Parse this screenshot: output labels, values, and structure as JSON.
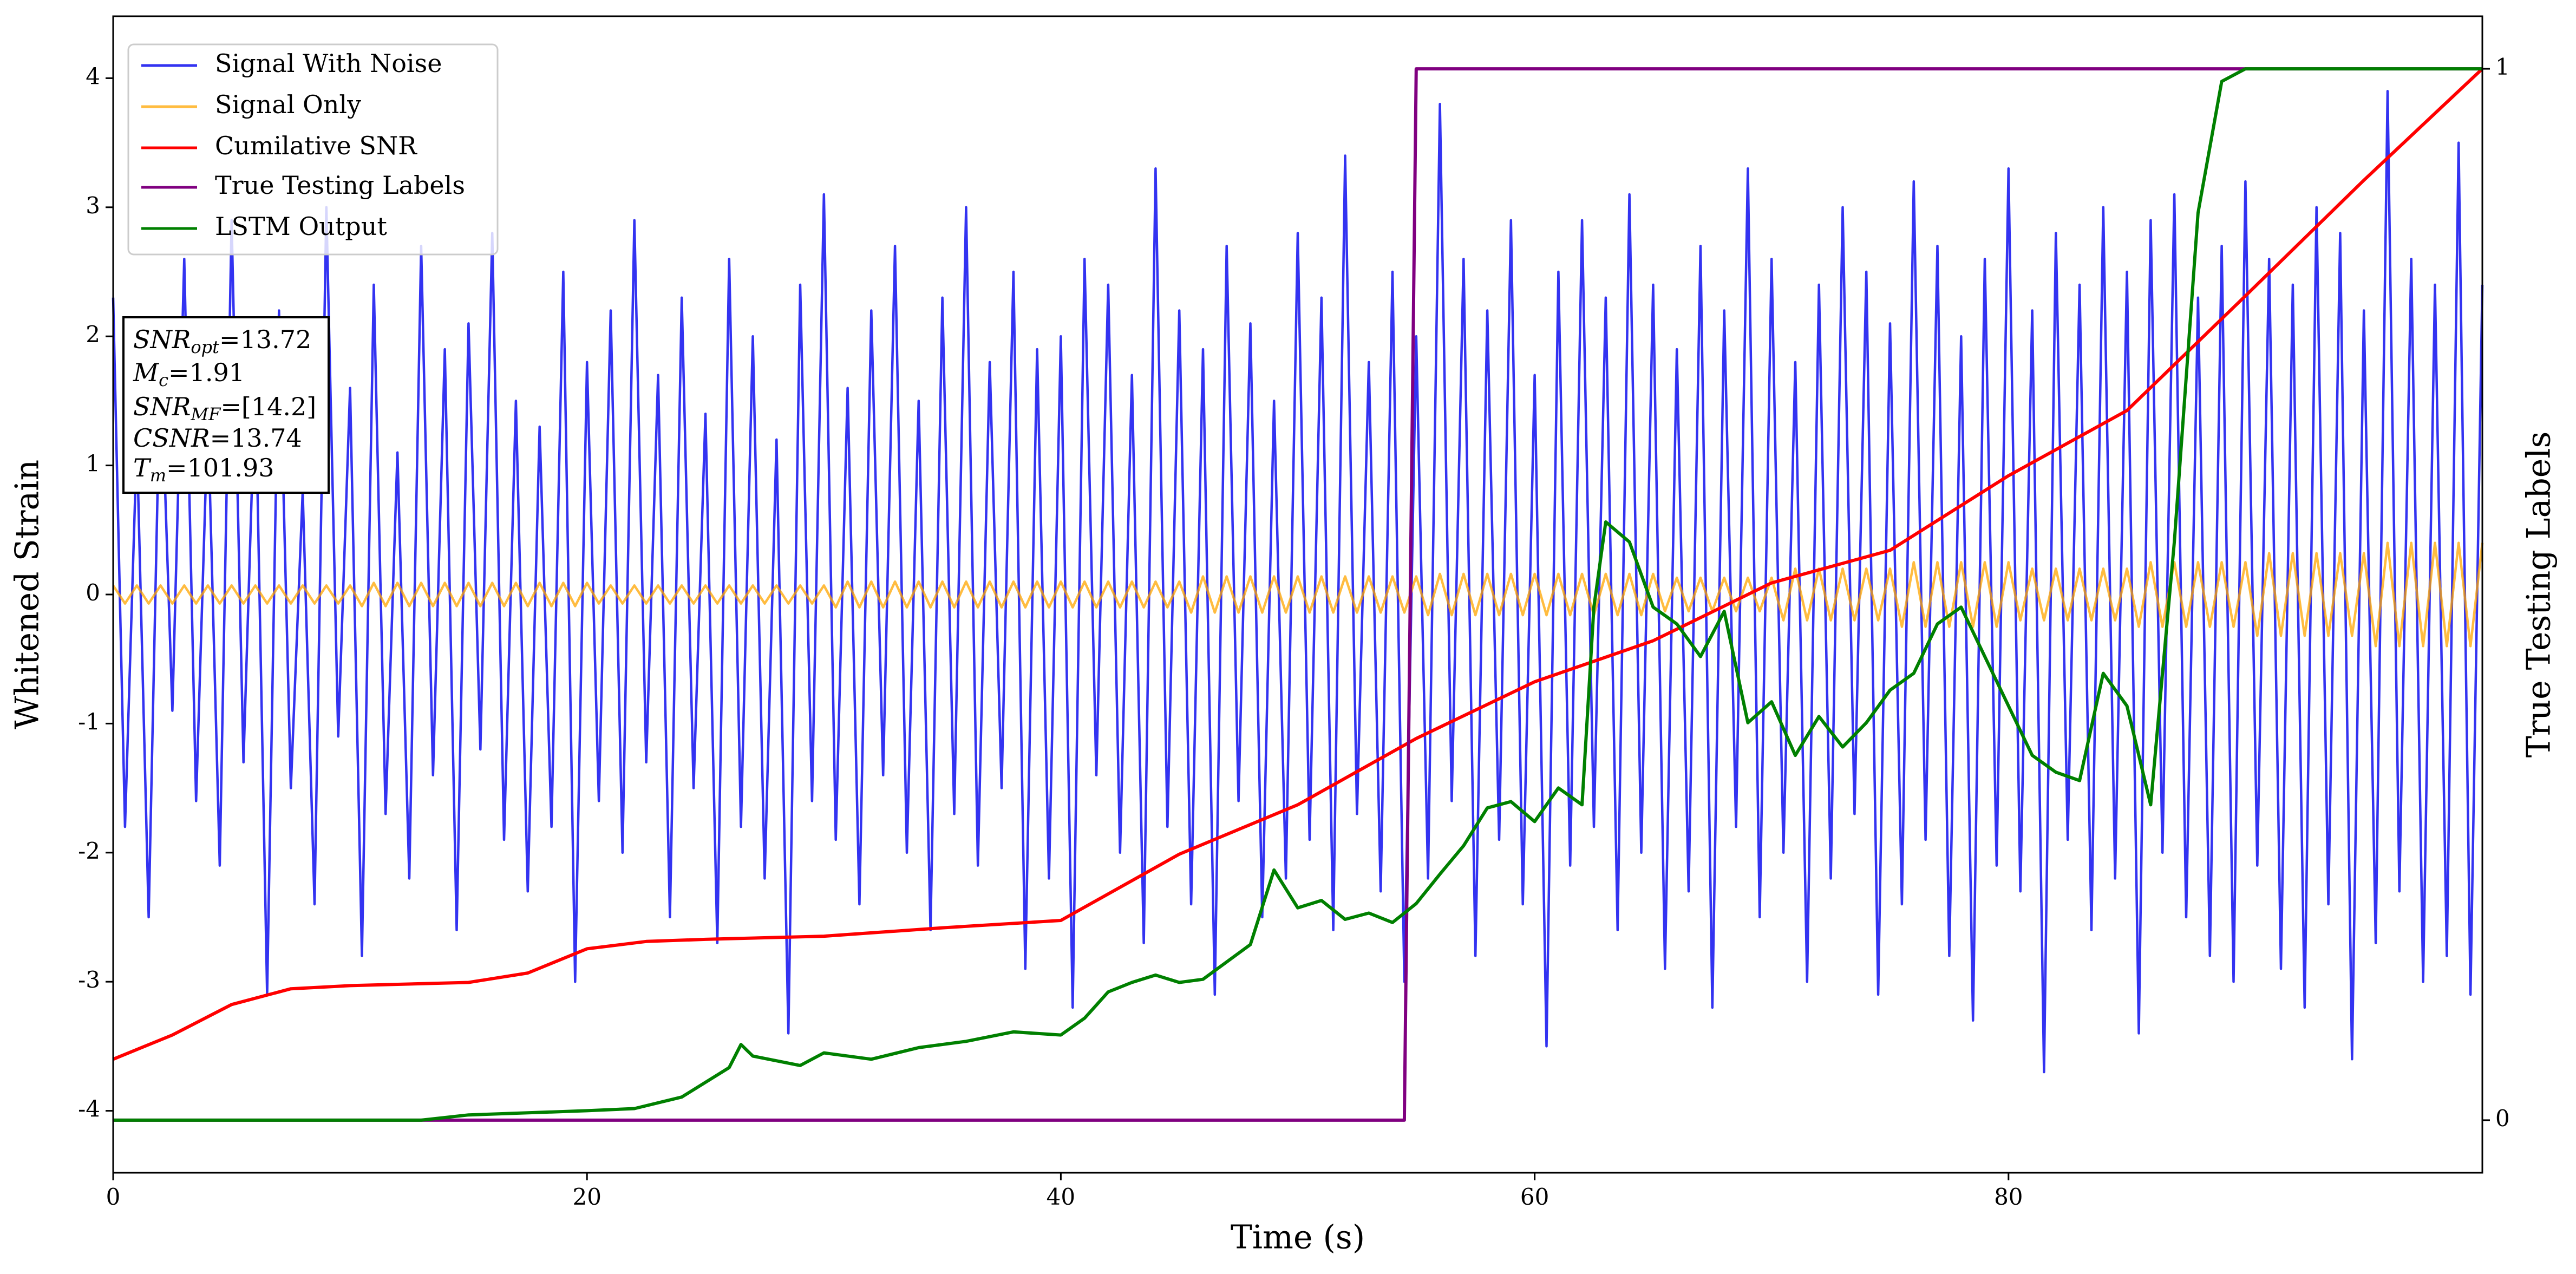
{
  "chart_data": {
    "type": "line",
    "x_label": "Time (s)",
    "y_label": "Whitened Strain",
    "y2_label": "True Testing Labels",
    "xlim": [
      0,
      100
    ],
    "xticks": [
      0,
      20,
      40,
      60,
      80
    ],
    "ylim": [
      -4.48,
      4.48
    ],
    "yticks": [
      -4,
      -3,
      -2,
      -1,
      0,
      1,
      2,
      3,
      4
    ],
    "y2lim": [
      -0.05,
      1.05
    ],
    "y2ticks": [
      0,
      1
    ],
    "legend": "upper left",
    "x": [
      0,
      0.5,
      1,
      1.5,
      2,
      2.5,
      3,
      3.5,
      4,
      4.5,
      5,
      5.5,
      6,
      6.5,
      7,
      7.5,
      8,
      8.5,
      9,
      9.5,
      10,
      10.5,
      11,
      11.5,
      12,
      12.5,
      13,
      13.5,
      14,
      14.5,
      15,
      15.5,
      16,
      16.5,
      17,
      17.5,
      18,
      18.5,
      19,
      19.5,
      20,
      20.5,
      21,
      21.5,
      22,
      22.5,
      23,
      23.5,
      24,
      24.5,
      25,
      25.5,
      26,
      26.5,
      27,
      27.5,
      28,
      28.5,
      29,
      29.5,
      30,
      30.5,
      31,
      31.5,
      32,
      32.5,
      33,
      33.5,
      34,
      34.5,
      35,
      35.5,
      36,
      36.5,
      37,
      37.5,
      38,
      38.5,
      39,
      39.5,
      40,
      40.5,
      41,
      41.5,
      42,
      42.5,
      43,
      43.5,
      44,
      44.5,
      45,
      45.5,
      46,
      46.5,
      47,
      47.5,
      48,
      48.5,
      49,
      49.5,
      50,
      50.5,
      51,
      51.5,
      52,
      52.5,
      53,
      53.5,
      54,
      54.5,
      55,
      55.5,
      56,
      56.5,
      57,
      57.5,
      58,
      58.5,
      59,
      59.5,
      60,
      60.5,
      61,
      61.5,
      62,
      62.5,
      63,
      63.5,
      64,
      64.5,
      65,
      65.5,
      66,
      66.5,
      67,
      67.5,
      68,
      68.5,
      69,
      69.5,
      70,
      70.5,
      71,
      71.5,
      72,
      72.5,
      73,
      73.5,
      74,
      74.5,
      75,
      75.5,
      76,
      76.5,
      77,
      77.5,
      78,
      78.5,
      79,
      79.5,
      80,
      80.5,
      81,
      81.5,
      82,
      82.5,
      83,
      83.5,
      84,
      84.5,
      85,
      85.5,
      86,
      86.5,
      87,
      87.5,
      88,
      88.5,
      89,
      89.5,
      90,
      90.5,
      91,
      91.5,
      92,
      92.5,
      93,
      93.5,
      94,
      94.5,
      95,
      95.5,
      96,
      96.5,
      97,
      97.5,
      98,
      98.5,
      99,
      99.5,
      100
    ],
    "series": [
      {
        "name": "Signal With Noise",
        "color": "#0000ee",
        "alpha": 0.8,
        "values": [
          2.3,
          -1.8,
          1.2,
          -2.5,
          1.9,
          -0.9,
          2.6,
          -1.6,
          1.4,
          -2.1,
          2.9,
          -1.3,
          1.7,
          -3.1,
          2.2,
          -1.5,
          0.8,
          -2.4,
          3.0,
          -1.1,
          1.6,
          -2.8,
          2.4,
          -1.7,
          1.1,
          -2.2,
          2.7,
          -1.4,
          1.9,
          -2.6,
          2.1,
          -1.2,
          2.8,
          -1.9,
          1.5,
          -2.3,
          1.3,
          -1.8,
          2.5,
          -3.0,
          1.8,
          -1.6,
          2.2,
          -2.0,
          2.9,
          -1.3,
          1.7,
          -2.5,
          2.3,
          -1.5,
          1.4,
          -2.7,
          2.6,
          -1.8,
          2.0,
          -2.2,
          1.2,
          -3.4,
          2.4,
          -1.6,
          3.1,
          -1.9,
          1.6,
          -2.4,
          2.2,
          -1.4,
          2.7,
          -2.0,
          1.5,
          -2.6,
          2.3,
          -1.7,
          3.0,
          -2.1,
          1.8,
          -1.5,
          2.5,
          -2.9,
          1.9,
          -2.2,
          2.0,
          -3.2,
          2.6,
          -1.4,
          2.4,
          -2.0,
          1.7,
          -2.7,
          3.3,
          -1.8,
          2.2,
          -2.4,
          1.9,
          -3.1,
          2.7,
          -1.6,
          2.1,
          -2.5,
          1.5,
          -2.2,
          2.8,
          -1.9,
          2.3,
          -2.6,
          3.4,
          -1.7,
          1.8,
          -2.3,
          2.5,
          -3.0,
          2.0,
          -2.2,
          3.8,
          -1.6,
          2.6,
          -2.8,
          2.2,
          -1.9,
          2.9,
          -2.4,
          1.7,
          -3.5,
          2.5,
          -2.1,
          2.9,
          -1.8,
          2.3,
          -2.6,
          3.1,
          -2.0,
          2.4,
          -2.9,
          1.9,
          -2.3,
          2.7,
          -3.2,
          2.2,
          -1.8,
          3.3,
          -2.5,
          2.6,
          -2.0,
          1.8,
          -3.0,
          2.4,
          -2.2,
          3.0,
          -1.7,
          2.5,
          -3.1,
          2.1,
          -2.4,
          3.2,
          -1.9,
          2.7,
          -2.8,
          2.0,
          -3.3,
          2.6,
          -2.1,
          3.3,
          -2.3,
          2.2,
          -3.7,
          2.8,
          -1.9,
          2.4,
          -2.6,
          3.0,
          -2.2,
          2.5,
          -3.4,
          2.9,
          -2.0,
          3.1,
          -2.5,
          2.3,
          -2.8,
          2.7,
          -3.0,
          3.2,
          -2.1,
          2.6,
          -2.9,
          2.4,
          -3.2,
          3.0,
          -2.4,
          2.8,
          -3.6,
          2.2,
          -2.7,
          3.9,
          -2.3,
          2.6,
          -3.0,
          2.4,
          -2.8,
          3.5,
          -3.1,
          2.4
        ]
      },
      {
        "name": "Signal Only",
        "color": "#ffa500",
        "alpha": 0.75,
        "values": [
          0.07,
          -0.07,
          0.07,
          -0.07,
          0.07,
          -0.07,
          0.07,
          -0.07,
          0.07,
          -0.07,
          0.07,
          -0.07,
          0.07,
          -0.07,
          0.07,
          -0.07,
          0.07,
          -0.07,
          0.07,
          -0.07,
          0.07,
          -0.09,
          0.09,
          -0.09,
          0.09,
          -0.09,
          0.09,
          -0.09,
          0.09,
          -0.09,
          0.09,
          -0.09,
          0.09,
          -0.09,
          0.09,
          -0.09,
          0.09,
          -0.09,
          0.09,
          -0.09,
          0.09,
          -0.07,
          0.07,
          -0.07,
          0.07,
          -0.07,
          0.07,
          -0.07,
          0.07,
          -0.07,
          0.07,
          -0.07,
          0.07,
          -0.07,
          0.07,
          -0.07,
          0.07,
          -0.07,
          0.07,
          -0.07,
          0.07,
          -0.1,
          0.1,
          -0.1,
          0.1,
          -0.1,
          0.1,
          -0.1,
          0.1,
          -0.1,
          0.1,
          -0.1,
          0.1,
          -0.1,
          0.1,
          -0.1,
          0.1,
          -0.1,
          0.1,
          -0.1,
          0.1,
          -0.1,
          0.1,
          -0.1,
          0.1,
          -0.1,
          0.1,
          -0.1,
          0.1,
          -0.1,
          0.1,
          -0.14,
          0.14,
          -0.14,
          0.14,
          -0.14,
          0.14,
          -0.14,
          0.14,
          -0.14,
          0.14,
          -0.14,
          0.14,
          -0.14,
          0.14,
          -0.14,
          0.14,
          -0.14,
          0.14,
          -0.14,
          0.14,
          -0.16,
          0.16,
          -0.16,
          0.16,
          -0.16,
          0.16,
          -0.16,
          0.16,
          -0.16,
          0.16,
          -0.16,
          0.16,
          -0.16,
          0.16,
          -0.16,
          0.16,
          -0.16,
          0.16,
          -0.16,
          0.16,
          -0.13,
          0.13,
          -0.13,
          0.13,
          -0.13,
          0.13,
          -0.13,
          0.13,
          -0.13,
          0.13,
          -0.2,
          0.2,
          -0.2,
          0.2,
          -0.2,
          0.2,
          -0.2,
          0.2,
          -0.2,
          0.2,
          -0.25,
          0.25,
          -0.25,
          0.25,
          -0.25,
          0.25,
          -0.25,
          0.25,
          -0.25,
          0.25,
          -0.2,
          0.2,
          -0.2,
          0.2,
          -0.2,
          0.2,
          -0.2,
          0.2,
          -0.2,
          0.2,
          -0.25,
          0.25,
          -0.25,
          0.25,
          -0.25,
          0.25,
          -0.25,
          0.25,
          -0.25,
          0.25,
          -0.32,
          0.32,
          -0.32,
          0.32,
          -0.32,
          0.32,
          -0.32,
          0.32,
          -0.32,
          0.32,
          -0.4,
          0.4,
          -0.4,
          0.4,
          -0.4,
          0.4,
          -0.4,
          0.4,
          -0.4,
          0.4
        ]
      },
      {
        "name": "Cumilative SNR",
        "color": "#ff0000",
        "alpha": 1,
        "axis": "y2",
        "x": [
          0,
          2.5,
          5,
          7.5,
          10,
          15,
          17.5,
          20,
          22.5,
          25,
          30,
          35,
          40,
          45,
          50,
          55,
          60,
          65,
          70,
          75,
          80,
          85,
          90,
          95,
          100
        ],
        "values": [
          0.058,
          0.081,
          0.11,
          0.125,
          0.128,
          0.131,
          0.14,
          0.163,
          0.17,
          0.172,
          0.175,
          0.183,
          0.19,
          0.253,
          0.3,
          0.363,
          0.417,
          0.456,
          0.511,
          0.542,
          0.613,
          0.675,
          0.784,
          0.894,
          1.0
        ]
      },
      {
        "name": "True Testing Labels",
        "color": "#800080",
        "alpha": 1,
        "axis": "y2",
        "x": [
          0,
          54.5,
          55,
          100
        ],
        "values": [
          0,
          0,
          1,
          1
        ]
      },
      {
        "name": "LSTM Output",
        "color": "#008000",
        "alpha": 1,
        "axis": "y2",
        "x": [
          0,
          13,
          15,
          20,
          22,
          24,
          26,
          26.5,
          27,
          29,
          30,
          32,
          34,
          36,
          38,
          40,
          41,
          42,
          43,
          44,
          45,
          46,
          48,
          49,
          50,
          51,
          52,
          53,
          54,
          55,
          56,
          57,
          58,
          59,
          60,
          61,
          62,
          62.5,
          63,
          64,
          65,
          66,
          67,
          68,
          69,
          70,
          71,
          72,
          73,
          74,
          75,
          76,
          77,
          78,
          79,
          80,
          81,
          82,
          83,
          84,
          85,
          86,
          87,
          88,
          89,
          90,
          100
        ],
        "values": [
          0,
          0,
          0.005,
          0.009,
          0.011,
          0.022,
          0.05,
          0.072,
          0.061,
          0.052,
          0.064,
          0.058,
          0.069,
          0.075,
          0.084,
          0.081,
          0.097,
          0.122,
          0.131,
          0.138,
          0.131,
          0.134,
          0.167,
          0.238,
          0.202,
          0.209,
          0.191,
          0.197,
          0.188,
          0.206,
          0.234,
          0.261,
          0.297,
          0.303,
          0.284,
          0.316,
          0.3,
          0.488,
          0.569,
          0.55,
          0.488,
          0.472,
          0.441,
          0.484,
          0.378,
          0.398,
          0.347,
          0.384,
          0.355,
          0.378,
          0.409,
          0.425,
          0.472,
          0.488,
          0.441,
          0.394,
          0.347,
          0.331,
          0.323,
          0.425,
          0.394,
          0.3,
          0.55,
          0.863,
          0.988,
          1.0,
          1.0
        ]
      }
    ],
    "annotations": [
      {
        "symbol": "SNR",
        "subscript": "opt",
        "text": "=13.72"
      },
      {
        "symbol": "M",
        "subscript": "c",
        "text": "=1.91"
      },
      {
        "symbol": "SNR",
        "subscript": "MF",
        "text": "=[14.2]"
      },
      {
        "symbol": "CSNR",
        "text": "=13.74"
      },
      {
        "symbol": "T",
        "subscript": "m",
        "text": "=101.93"
      }
    ]
  }
}
